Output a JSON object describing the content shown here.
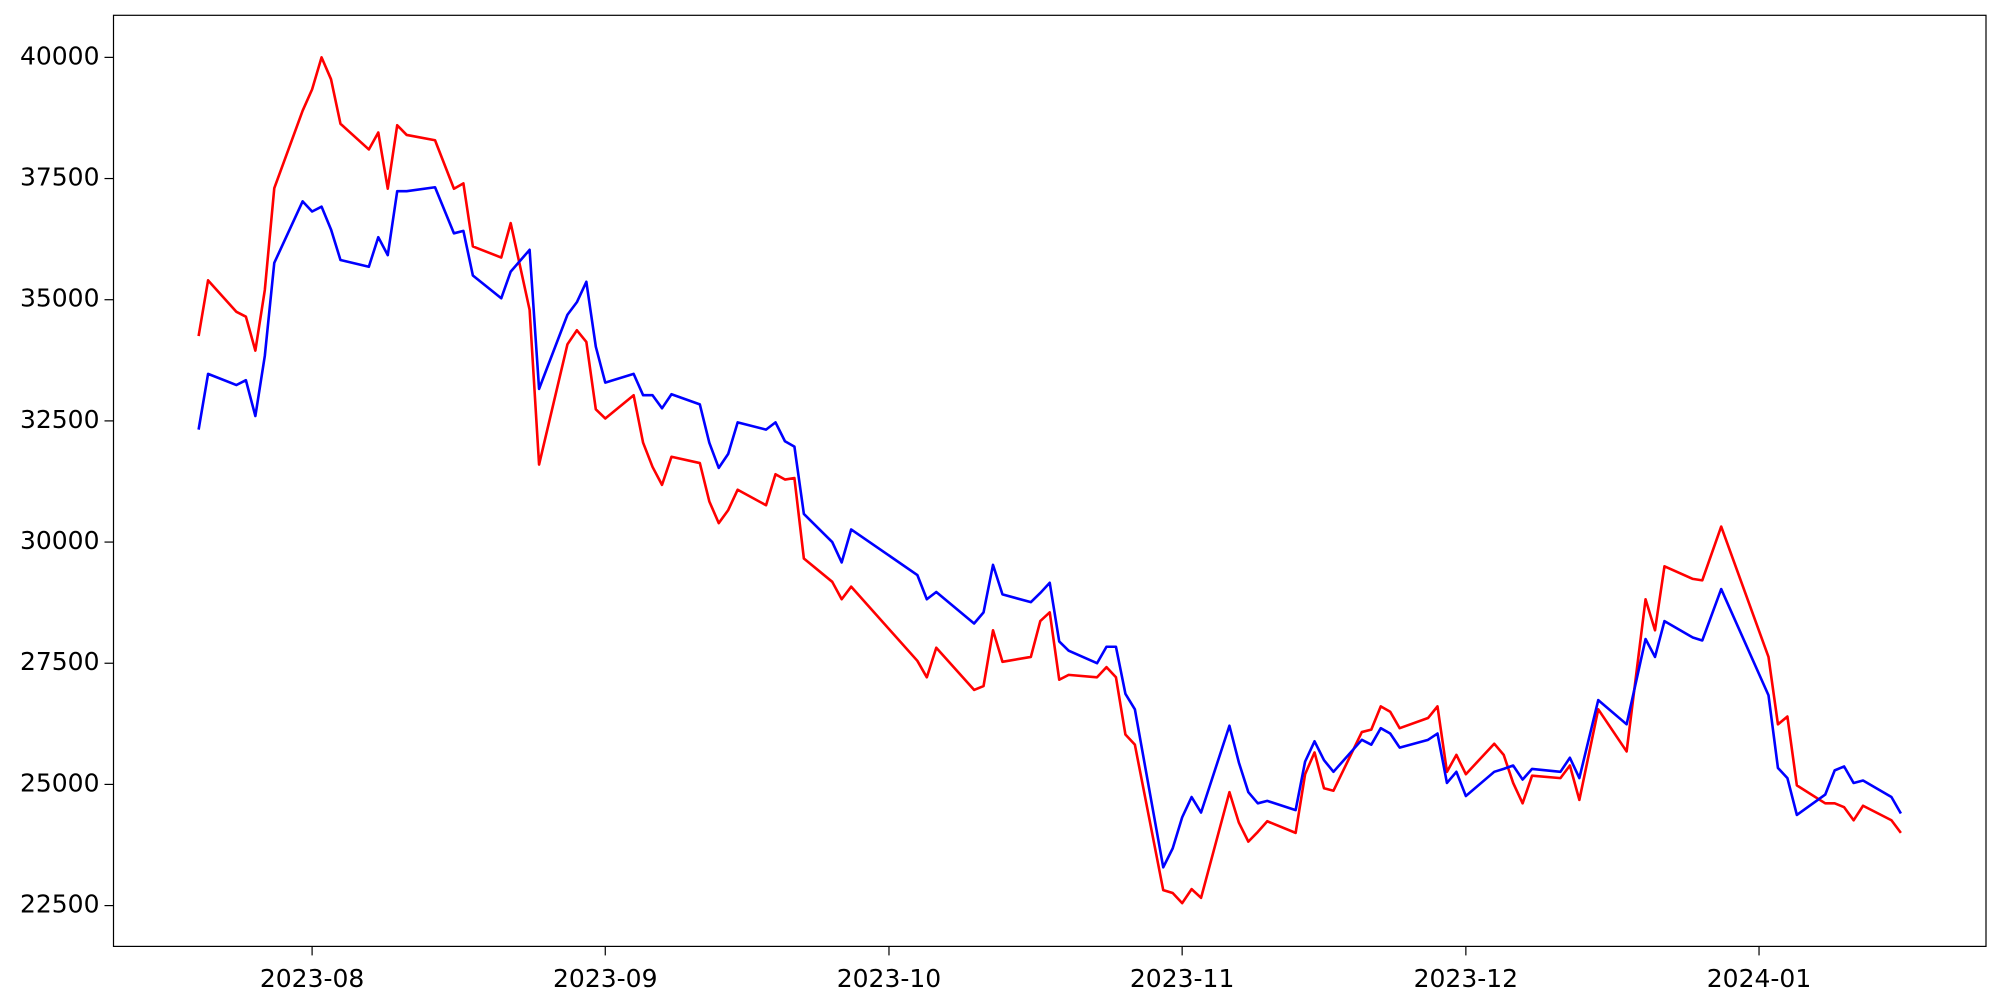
{
  "chart_data": {
    "type": "line",
    "x": [
      "2023-07-20",
      "2023-07-21",
      "2023-07-24",
      "2023-07-25",
      "2023-07-26",
      "2023-07-27",
      "2023-07-28",
      "2023-07-31",
      "2023-08-01",
      "2023-08-02",
      "2023-08-03",
      "2023-08-04",
      "2023-08-07",
      "2023-08-08",
      "2023-08-09",
      "2023-08-10",
      "2023-08-11",
      "2023-08-14",
      "2023-08-16",
      "2023-08-17",
      "2023-08-18",
      "2023-08-21",
      "2023-08-22",
      "2023-08-24",
      "2023-08-25",
      "2023-08-28",
      "2023-08-29",
      "2023-08-30",
      "2023-08-31",
      "2023-09-01",
      "2023-09-04",
      "2023-09-05",
      "2023-09-06",
      "2023-09-07",
      "2023-09-08",
      "2023-09-11",
      "2023-09-12",
      "2023-09-13",
      "2023-09-14",
      "2023-09-15",
      "2023-09-18",
      "2023-09-19",
      "2023-09-20",
      "2023-09-21",
      "2023-09-22",
      "2023-09-25",
      "2023-09-26",
      "2023-09-27",
      "2023-10-04",
      "2023-10-05",
      "2023-10-06",
      "2023-10-10",
      "2023-10-11",
      "2023-10-12",
      "2023-10-13",
      "2023-10-16",
      "2023-10-17",
      "2023-10-18",
      "2023-10-19",
      "2023-10-20",
      "2023-10-23",
      "2023-10-24",
      "2023-10-25",
      "2023-10-26",
      "2023-10-27",
      "2023-10-30",
      "2023-10-31",
      "2023-11-01",
      "2023-11-02",
      "2023-11-03",
      "2023-11-06",
      "2023-11-07",
      "2023-11-08",
      "2023-11-09",
      "2023-11-10",
      "2023-11-13",
      "2023-11-14",
      "2023-11-15",
      "2023-11-16",
      "2023-11-17",
      "2023-11-20",
      "2023-11-21",
      "2023-11-22",
      "2023-11-23",
      "2023-11-24",
      "2023-11-27",
      "2023-11-28",
      "2023-11-29",
      "2023-11-30",
      "2023-12-01",
      "2023-12-04",
      "2023-12-05",
      "2023-12-06",
      "2023-12-07",
      "2023-12-08",
      "2023-12-11",
      "2023-12-12",
      "2023-12-13",
      "2023-12-15",
      "2023-12-18",
      "2023-12-20",
      "2023-12-21",
      "2023-12-22",
      "2023-12-25",
      "2023-12-26",
      "2023-12-28",
      "2024-01-02",
      "2024-01-03",
      "2024-01-04",
      "2024-01-05",
      "2024-01-08",
      "2024-01-09",
      "2024-01-10",
      "2024-01-11",
      "2024-01-12",
      "2024-01-15",
      "2024-01-16"
    ],
    "series": [
      {
        "color": "#ff0000",
        "values": [
          34250,
          35400,
          34750,
          34650,
          33950,
          35200,
          37300,
          38900,
          39340,
          40000,
          39550,
          38630,
          38100,
          38450,
          37290,
          38600,
          38400,
          38290,
          37290,
          37400,
          36100,
          35870,
          36580,
          34790,
          31600,
          34080,
          34370,
          34130,
          32740,
          32550,
          33030,
          32050,
          31550,
          31180,
          31760,
          31630,
          30840,
          30390,
          30660,
          31080,
          30760,
          31400,
          31290,
          31320,
          29660,
          29180,
          28820,
          29080,
          27550,
          27210,
          27820,
          26950,
          27030,
          28180,
          27530,
          27630,
          28370,
          28550,
          27160,
          27260,
          27210,
          27420,
          27210,
          26030,
          25820,
          22820,
          22760,
          22550,
          22840,
          22660,
          24840,
          24210,
          23820,
          24020,
          24240,
          24000,
          25210,
          25660,
          24920,
          24870,
          26080,
          26130,
          26610,
          26500,
          26160,
          26370,
          26610,
          25260,
          25610,
          25210,
          25840,
          25610,
          25030,
          24610,
          25180,
          25130,
          25390,
          24680,
          26550,
          25680,
          28820,
          28180,
          29500,
          29240,
          29210,
          30320,
          27630,
          26240,
          26400,
          24980,
          24610,
          24610,
          24530,
          24260,
          24560,
          24260,
          24000
        ]
      },
      {
        "color": "#0000ff",
        "values": [
          32320,
          33470,
          33240,
          33340,
          32600,
          33840,
          35760,
          37030,
          36820,
          36920,
          36450,
          35820,
          35680,
          36290,
          35920,
          37240,
          37240,
          37320,
          36370,
          36420,
          35500,
          35030,
          35580,
          36030,
          33160,
          34690,
          34950,
          35370,
          34030,
          33290,
          33470,
          33030,
          33030,
          32760,
          33050,
          32840,
          32050,
          31530,
          31820,
          32470,
          32320,
          32470,
          32080,
          31970,
          30580,
          30000,
          29580,
          30260,
          29320,
          28820,
          28970,
          28320,
          28550,
          29530,
          28920,
          28760,
          28950,
          29160,
          27950,
          27760,
          27500,
          27840,
          27840,
          26870,
          26550,
          23290,
          23680,
          24320,
          24740,
          24420,
          26210,
          25450,
          24840,
          24610,
          24660,
          24470,
          25470,
          25890,
          25500,
          25260,
          25920,
          25820,
          26160,
          26050,
          25760,
          25920,
          26050,
          25030,
          25260,
          24760,
          25260,
          25320,
          25390,
          25100,
          25320,
          25260,
          25550,
          25130,
          26740,
          26240,
          28000,
          27630,
          28370,
          28030,
          27970,
          29030,
          26840,
          25340,
          25130,
          24370,
          24790,
          25290,
          25370,
          25030,
          25080,
          24740,
          24400
        ]
      }
    ],
    "xlim": [
      "2023-07-11",
      "2024-01-25"
    ],
    "xticks": [
      {
        "value": "2023-08-01",
        "label": "2023-08"
      },
      {
        "value": "2023-09-01",
        "label": "2023-09"
      },
      {
        "value": "2023-10-01",
        "label": "2023-10"
      },
      {
        "value": "2023-11-01",
        "label": "2023-11"
      },
      {
        "value": "2023-12-01",
        "label": "2023-12"
      },
      {
        "value": "2024-01-01",
        "label": "2024-01"
      }
    ],
    "ylim": [
      21658,
      40868
    ],
    "yticks": [
      22500,
      25000,
      27500,
      30000,
      32500,
      35000,
      37500,
      40000
    ],
    "grid": false
  }
}
